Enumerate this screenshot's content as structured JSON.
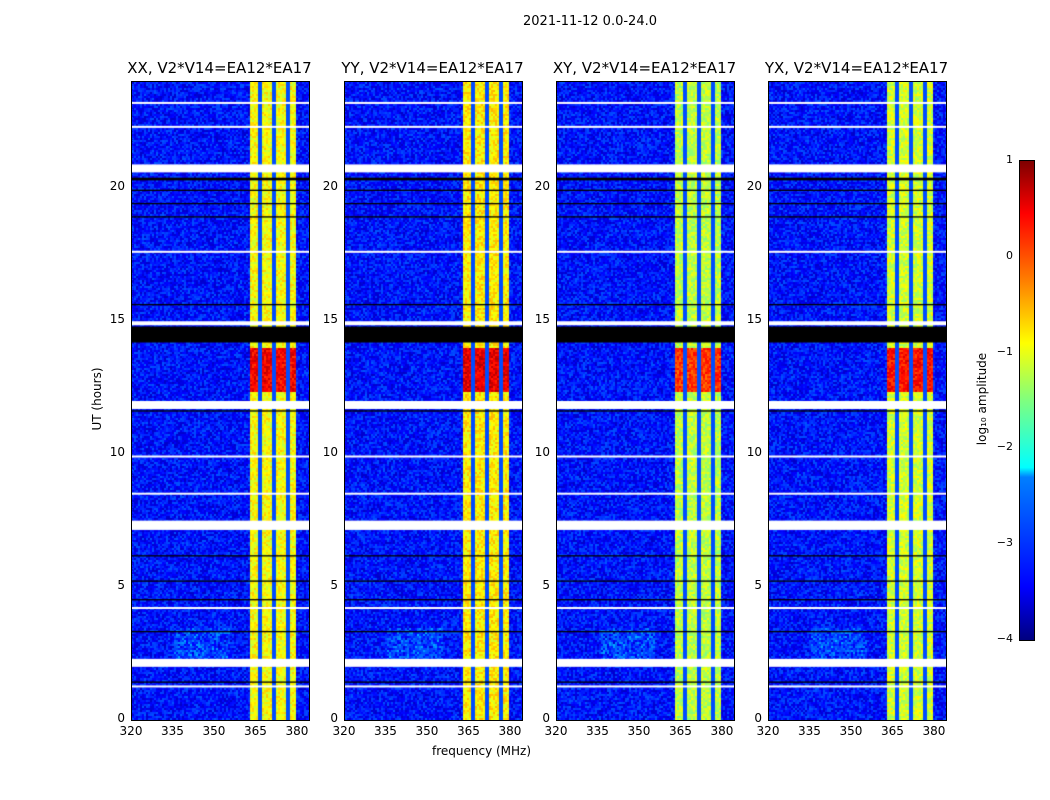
{
  "suptitle": "2021-11-12 0.0-24.0",
  "chart_data": {
    "type": "heatmap",
    "title": "2021-11-12 0.0-24.0",
    "xlabel": "frequency (MHz)",
    "ylabel": "UT (hours)",
    "xlim": [
      320,
      384
    ],
    "ylim": [
      0,
      24
    ],
    "xticks": [
      "320",
      "335",
      "350",
      "365",
      "380"
    ],
    "xtick_values": [
      320,
      335,
      350,
      365,
      380
    ],
    "yticks": [
      "0",
      "5",
      "10",
      "15",
      "20"
    ],
    "ytick_values": [
      0,
      5,
      10,
      15,
      20
    ],
    "panels": [
      {
        "title": "XX, V2*V14=EA12*EA17",
        "band_level": -0.9,
        "burst_level": 0.4
      },
      {
        "title": "YY, V2*V14=EA12*EA17",
        "band_level": -0.8,
        "burst_level": 0.5
      },
      {
        "title": "XY, V2*V14=EA12*EA17",
        "band_level": -1.2,
        "burst_level": 0.1
      },
      {
        "title": "YX, V2*V14=EA12*EA17",
        "band_level": -1.1,
        "burst_level": 0.3
      }
    ],
    "rfi_band_mhz": [
      362,
      379
    ],
    "rfi_gap_channels_mhz": [
      366,
      371,
      376
    ],
    "burst_hours": [
      12.4,
      14.0
    ],
    "background_level": -3.3,
    "flagged_white_hours": [
      [
        1.25,
        1.3
      ],
      [
        2.0,
        2.3
      ],
      [
        7.15,
        7.5
      ],
      [
        11.7,
        12.0
      ],
      [
        14.85,
        15.0
      ],
      [
        20.6,
        20.9
      ],
      [
        23.2,
        23.25
      ],
      [
        22.3,
        22.35
      ],
      [
        17.6,
        17.65
      ],
      [
        8.5,
        8.55
      ],
      [
        9.9,
        9.95
      ],
      [
        4.2,
        4.25
      ]
    ],
    "flagged_black_hours": [
      [
        1.4,
        1.45
      ],
      [
        3.3,
        3.35
      ],
      [
        4.5,
        4.55
      ],
      [
        5.2,
        5.25
      ],
      [
        6.15,
        6.2
      ],
      [
        11.6,
        11.65
      ],
      [
        14.2,
        14.8
      ],
      [
        19.4,
        19.45
      ],
      [
        19.9,
        19.95
      ],
      [
        20.3,
        20.4
      ],
      [
        18.9,
        18.95
      ],
      [
        15.6,
        15.65
      ]
    ],
    "colorbar": {
      "label": "log₁₀ amplitude",
      "ticks": [
        "1",
        "0",
        "−1",
        "−2",
        "−3",
        "−4"
      ],
      "tick_values": [
        1,
        0,
        -1,
        -2,
        -3,
        -4
      ],
      "range": [
        -4,
        1
      ],
      "cmap": "jet"
    }
  }
}
